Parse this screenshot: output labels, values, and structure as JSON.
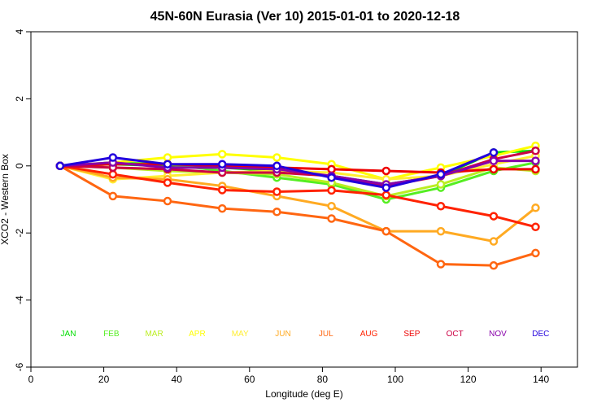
{
  "chart_data": {
    "type": "line",
    "title": "45N-60N Eurasia (Ver 10)   2015-01-01 to 2020-12-18",
    "xlabel": "Longitude (deg E)",
    "ylabel": "XCO2 - Western Box",
    "xlim": [
      0,
      150
    ],
    "ylim": [
      -6,
      4
    ],
    "x_ticks": [
      0,
      20,
      40,
      60,
      80,
      100,
      120,
      140
    ],
    "y_ticks": [
      -6,
      -4,
      -2,
      0,
      2,
      4
    ],
    "x_tick_labels": [
      "0",
      "20",
      "40",
      "60",
      "80",
      "100",
      "120",
      "140"
    ],
    "y_tick_labels": [
      "-6",
      "-4",
      "-2",
      "0",
      "2",
      "4"
    ],
    "grid": false,
    "x": [
      8,
      22.5,
      37.5,
      52.5,
      67.5,
      82.5,
      97.5,
      112.5,
      127,
      138.5
    ],
    "series": [
      {
        "name": "JAN",
        "color": "#00dd00",
        "values": [
          0,
          0.05,
          0.0,
          -0.05,
          -0.15,
          -0.3,
          -0.55,
          -0.3,
          0.4,
          0.45
        ]
      },
      {
        "name": "FEB",
        "color": "#55ee22",
        "values": [
          0,
          0.1,
          0.05,
          -0.15,
          -0.35,
          -0.55,
          -1.0,
          -0.65,
          -0.15,
          0.1
        ]
      },
      {
        "name": "MAR",
        "color": "#bbee22",
        "values": [
          0,
          -0.05,
          -0.15,
          -0.2,
          -0.25,
          -0.5,
          -0.9,
          -0.55,
          -0.05,
          -0.15
        ]
      },
      {
        "name": "APR",
        "color": "#ffff00",
        "values": [
          0,
          0.1,
          0.25,
          0.35,
          0.25,
          0.05,
          -0.4,
          -0.05,
          0.3,
          0.6
        ]
      },
      {
        "name": "MAY",
        "color": "#ffee33",
        "values": [
          0,
          -0.4,
          -0.3,
          -0.2,
          -0.15,
          -0.2,
          -0.4,
          -0.3,
          0.05,
          0.3
        ]
      },
      {
        "name": "JUN",
        "color": "#ffaa22",
        "values": [
          0,
          -0.35,
          -0.4,
          -0.6,
          -0.9,
          -1.2,
          -1.95,
          -1.95,
          -2.25,
          -1.25
        ]
      },
      {
        "name": "JUL",
        "color": "#ff6611",
        "values": [
          0,
          -0.9,
          -1.05,
          -1.27,
          -1.37,
          -1.57,
          -1.95,
          -2.93,
          -2.97,
          -2.6
        ]
      },
      {
        "name": "AUG",
        "color": "#ff2200",
        "values": [
          0,
          -0.25,
          -0.5,
          -0.72,
          -0.77,
          -0.73,
          -0.87,
          -1.2,
          -1.5,
          -1.82
        ]
      },
      {
        "name": "SEP",
        "color": "#ee0000",
        "values": [
          0,
          0.05,
          0.05,
          0.0,
          -0.05,
          -0.1,
          -0.15,
          -0.2,
          -0.1,
          -0.1
        ]
      },
      {
        "name": "OCT",
        "color": "#cc0044",
        "values": [
          0,
          -0.05,
          -0.1,
          -0.2,
          -0.2,
          -0.3,
          -0.6,
          -0.3,
          0.2,
          0.45
        ]
      },
      {
        "name": "NOV",
        "color": "#8800aa",
        "values": [
          0,
          0.1,
          -0.05,
          -0.05,
          -0.1,
          -0.3,
          -0.55,
          -0.3,
          0.15,
          0.15
        ]
      },
      {
        "name": "DEC",
        "color": "#2200dd",
        "values": [
          0,
          0.25,
          0.05,
          0.05,
          0.0,
          -0.35,
          -0.65,
          -0.25,
          0.4,
          null
        ]
      }
    ]
  }
}
